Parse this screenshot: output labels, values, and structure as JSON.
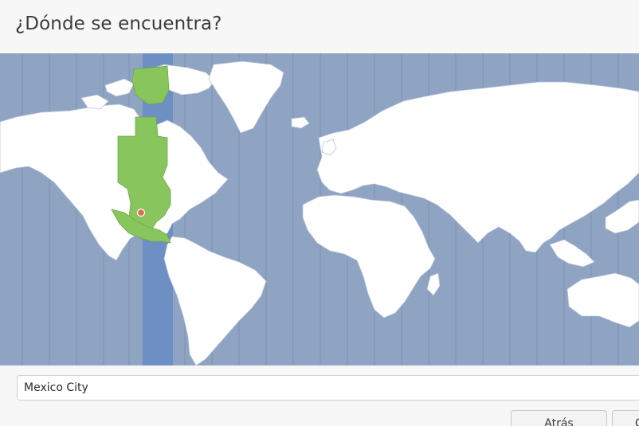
{
  "header": {
    "title": "¿Dónde se encuentra?"
  },
  "map": {
    "selected_timezone_color": "#6d8fc4",
    "selected_region_color": "#88c65d",
    "ocean_color": "#8fa3c2",
    "land_color": "#ffffff",
    "marker_color": "#e36a5a"
  },
  "location": {
    "value": "Mexico City",
    "placeholder": ""
  },
  "footer": {
    "back_label": "Atrás",
    "next_label": "C"
  }
}
